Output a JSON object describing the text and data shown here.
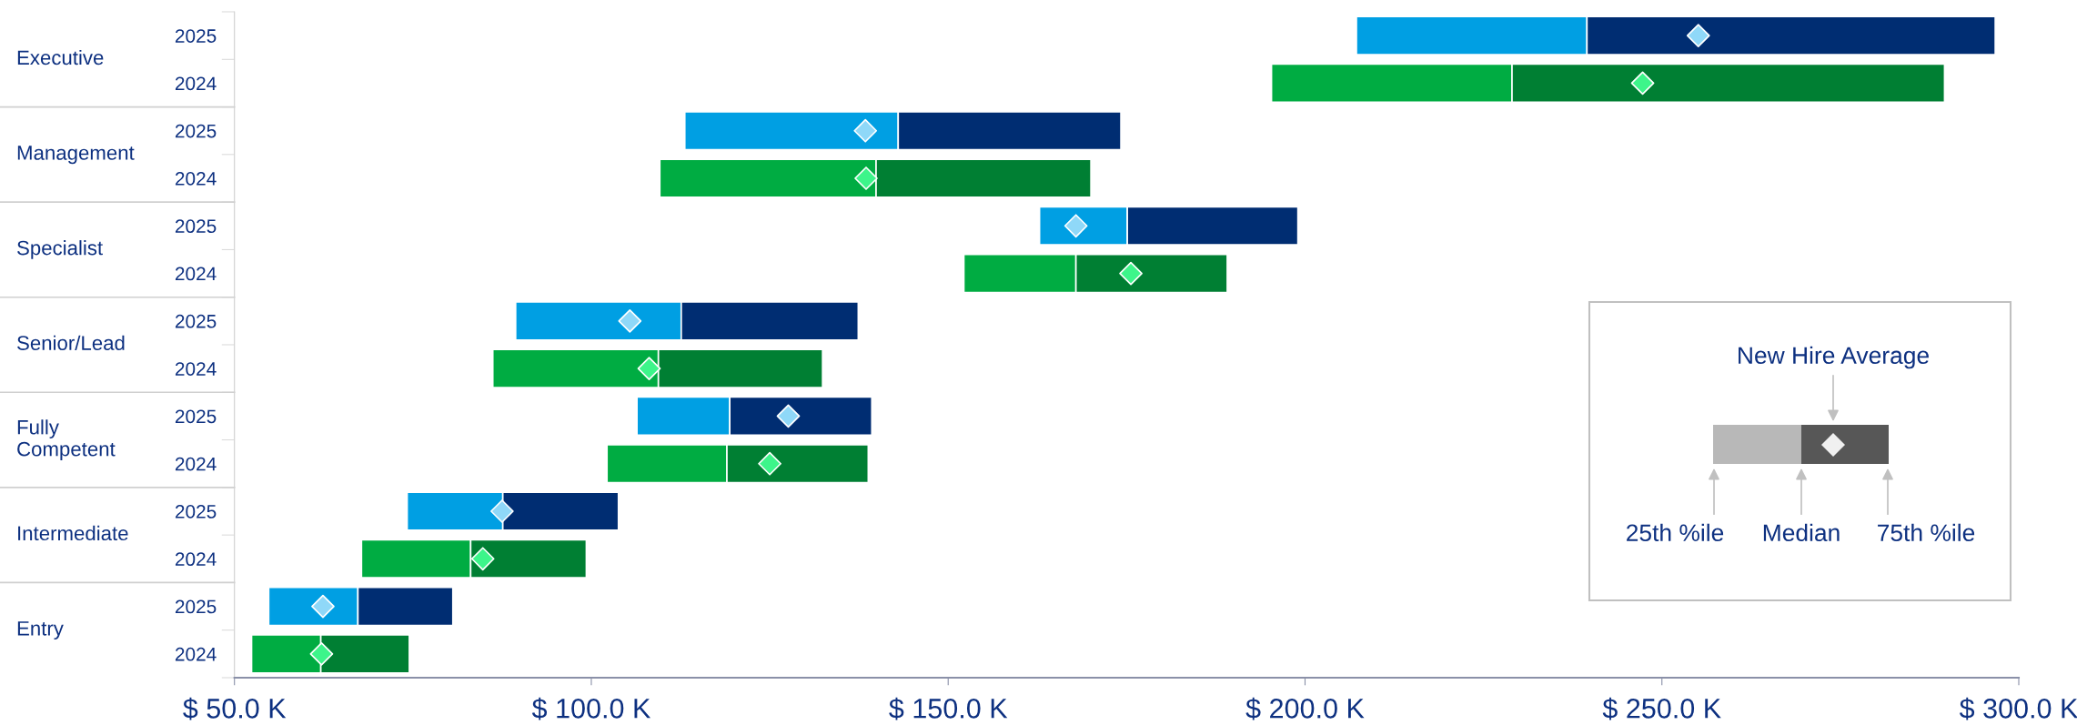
{
  "chart_data": {
    "type": "bar",
    "orientation": "horizontal",
    "categories": [
      "2025",
      "2024",
      "2025",
      "2024",
      "2025",
      "2024",
      "2025",
      "2024",
      "2025",
      "2024",
      "2025",
      "2024",
      "2025",
      "2024"
    ],
    "series": [
      {
        "type": "bar",
        "base": [
          207.2,
          195.3,
          113.1,
          109.6,
          162.8,
          152.2,
          89.4,
          86.2,
          106.4,
          102.2,
          74.2,
          67.8,
          54.8,
          52.4
        ],
        "colors": [
          "#009fe3",
          "#00ac42",
          "#009fe3",
          "#00ac42",
          "#009fe3",
          "#00ac42",
          "#009fe3",
          "#00ac42",
          "#009fe3",
          "#00ac42",
          "#009fe3",
          "#00ac42",
          "#009fe3",
          "#00ac42"
        ],
        "values": [
          32.3,
          33.7,
          29.9,
          30.3,
          12.3,
          15.7,
          23.2,
          23.2,
          13.0,
          16.8,
          13.4,
          15.3,
          12.5,
          9.7
        ]
      },
      {
        "type": "bar",
        "base": [
          239.5,
          229.0,
          143.0,
          139.9,
          175.1,
          167.9,
          112.6,
          109.4,
          119.4,
          119.0,
          87.6,
          83.1,
          67.3,
          62.1
        ],
        "colors": [
          "#002d72",
          "#007f33",
          "#002d72",
          "#007f33",
          "#002d72",
          "#007f33",
          "#002d72",
          "#007f33",
          "#002d72",
          "#007f33",
          "#002d72",
          "#007f33",
          "#002d72",
          "#007f33"
        ],
        "values": [
          57.2,
          60.6,
          31.2,
          30.1,
          23.9,
          21.2,
          24.8,
          23.0,
          19.9,
          19.8,
          16.2,
          16.2,
          13.3,
          12.4
        ]
      },
      {
        "type": "scatter",
        "marker": "diamond",
        "colors": [
          "#8fd8f8",
          "#3df58a",
          "#8fd8f8",
          "#3df58a",
          "#8fd8f8",
          "#3df58a",
          "#8fd8f8",
          "#3df58a",
          "#8fd8f8",
          "#3df58a",
          "#8fd8f8",
          "#3df58a",
          "#8fd8f8",
          "#3df58a"
        ],
        "values": [
          255.1,
          247.3,
          138.4,
          138.5,
          167.9,
          175.6,
          105.4,
          108.1,
          127.6,
          125.0,
          87.5,
          84.8,
          62.4,
          62.2
        ]
      }
    ],
    "xlim": [
      50,
      300
    ],
    "xticks": [
      {
        "value": 50,
        "label": "$ 50.0 K"
      },
      {
        "value": 100,
        "label": "$ 100.0 K"
      },
      {
        "value": 150,
        "label": "$ 150.0 K"
      },
      {
        "value": 200,
        "label": "$ 200.0 K"
      },
      {
        "value": 250,
        "label": "$ 250.0 K"
      },
      {
        "value": 300,
        "label": "$ 300.0 K"
      }
    ],
    "grid": false,
    "legend": false,
    "annotations": [
      "Executive",
      "Management",
      "Specialist",
      "Senior/Lead",
      "Fully\nCompetent",
      "Intermediate",
      "Entry",
      "New Hire Average",
      "25th %ile",
      "Median",
      "75th %ile"
    ]
  }
}
